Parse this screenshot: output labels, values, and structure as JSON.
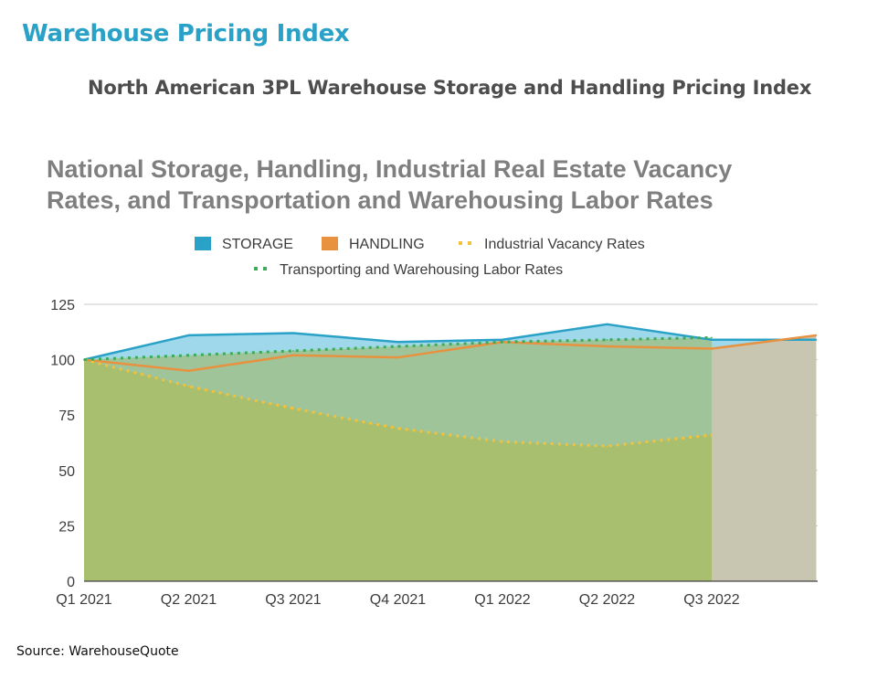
{
  "page": {
    "heading": "Warehouse Pricing Index",
    "subheading": "North American 3PL Warehouse Storage and Handling Pricing Index",
    "source": "Source: WarehouseQuote"
  },
  "chart_data": {
    "type": "area",
    "title_lines": [
      "National Storage, Handling, Industrial Real Estate Vacancy",
      "Rates, and Transportation and Warehousing Labor Rates"
    ],
    "x": [
      0,
      1,
      2,
      3,
      4,
      5,
      6,
      7
    ],
    "xticks": [
      "Q1 2021",
      "Q2 2021",
      "Q3 2021",
      "Q4 2021",
      "Q1 2022",
      "Q2 2022",
      "Q3 2022"
    ],
    "ylim": [
      0,
      125
    ],
    "yticks": [
      0,
      25,
      50,
      75,
      100,
      125
    ],
    "grid": true,
    "legend_position": "top",
    "series": [
      {
        "name": "STORAGE",
        "style": "area",
        "color": "#2aa1c7",
        "fill": "#9fd8ea",
        "x": [
          0,
          1,
          2,
          3,
          4,
          5,
          6,
          7
        ],
        "values": [
          100,
          111,
          112,
          108,
          109,
          116,
          109,
          109
        ]
      },
      {
        "name": "HANDLING",
        "style": "area",
        "color": "#e8913f",
        "fill": "#c8c5b0",
        "x": [
          0,
          1,
          2,
          3,
          4,
          5,
          6,
          7
        ],
        "values": [
          100,
          95,
          102,
          101,
          108,
          106,
          105,
          111
        ]
      },
      {
        "name": "Industrial Vacancy Rates",
        "style": "dotted",
        "color": "#f2c23d",
        "fill": "#a7bf6f",
        "x": [
          0,
          1,
          2,
          3,
          4,
          5,
          6
        ],
        "values": [
          100,
          88,
          78,
          69,
          63,
          61,
          66
        ]
      },
      {
        "name": "Transporting and Warehousing Labor Rates",
        "style": "dotted",
        "color": "#3cab5a",
        "fill": "#9fc49a",
        "x": [
          0,
          1,
          2,
          3,
          4,
          5,
          6
        ],
        "values": [
          100,
          102,
          104,
          106,
          108,
          109,
          110
        ]
      }
    ]
  }
}
